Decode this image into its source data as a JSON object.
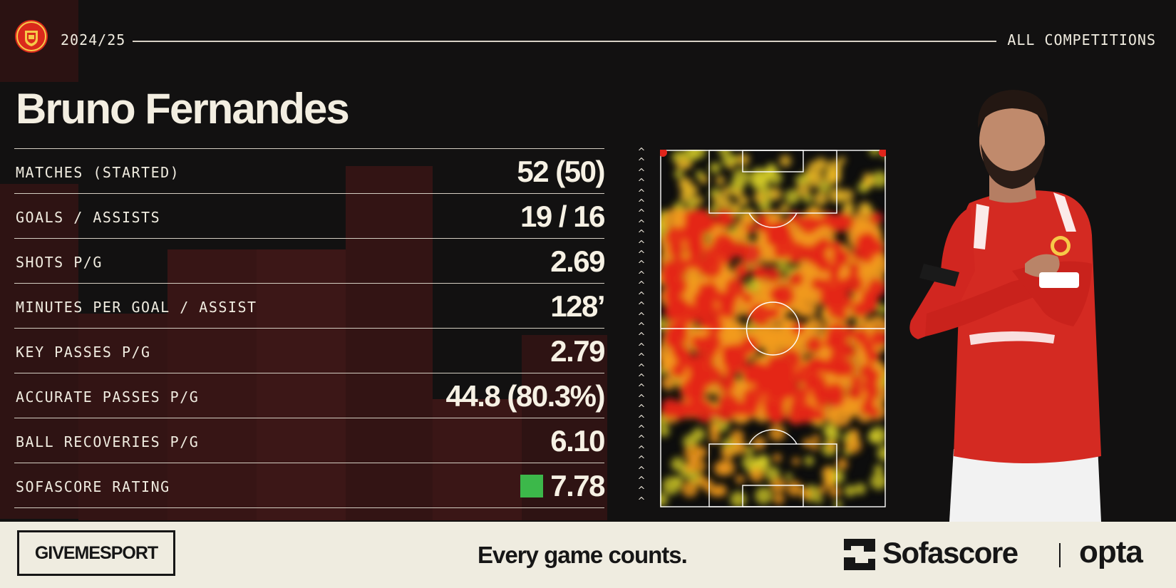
{
  "header": {
    "season": "2024/25",
    "competition": "ALL COMPETITIONS",
    "crest_icon": "manchester-united-crest-icon"
  },
  "player": {
    "name": "Bruno Fernandes"
  },
  "stats": [
    {
      "label": "MATCHES (STARTED)",
      "value": "52 (50)"
    },
    {
      "label": "GOALS / ASSISTS",
      "value": "19 / 16"
    },
    {
      "label": "SHOTS P/G",
      "value": "2.69"
    },
    {
      "label": "MINUTES PER GOAL / ASSIST",
      "value": "128’"
    },
    {
      "label": "KEY PASSES P/G",
      "value": "2.79"
    },
    {
      "label": "ACCURATE PASSES P/G",
      "value": "44.8 (80.3%)"
    },
    {
      "label": "BALL RECOVERIES P/G",
      "value": "6.10"
    },
    {
      "label": "SOFASCORE RATING",
      "value": "7.78",
      "rating_color": "#3cb84a"
    }
  ],
  "heatmap": {
    "attack_direction_icon": "chevron-up-icon"
  },
  "colors": {
    "background": "#121111",
    "accent_red": "#da291c",
    "text_light": "#f3eee1",
    "footer_bg": "#efece0"
  },
  "footer": {
    "brand": "GIVEMESPORT",
    "tagline": "Every game counts.",
    "sofascore": "Sofascore",
    "opta": "opta"
  }
}
